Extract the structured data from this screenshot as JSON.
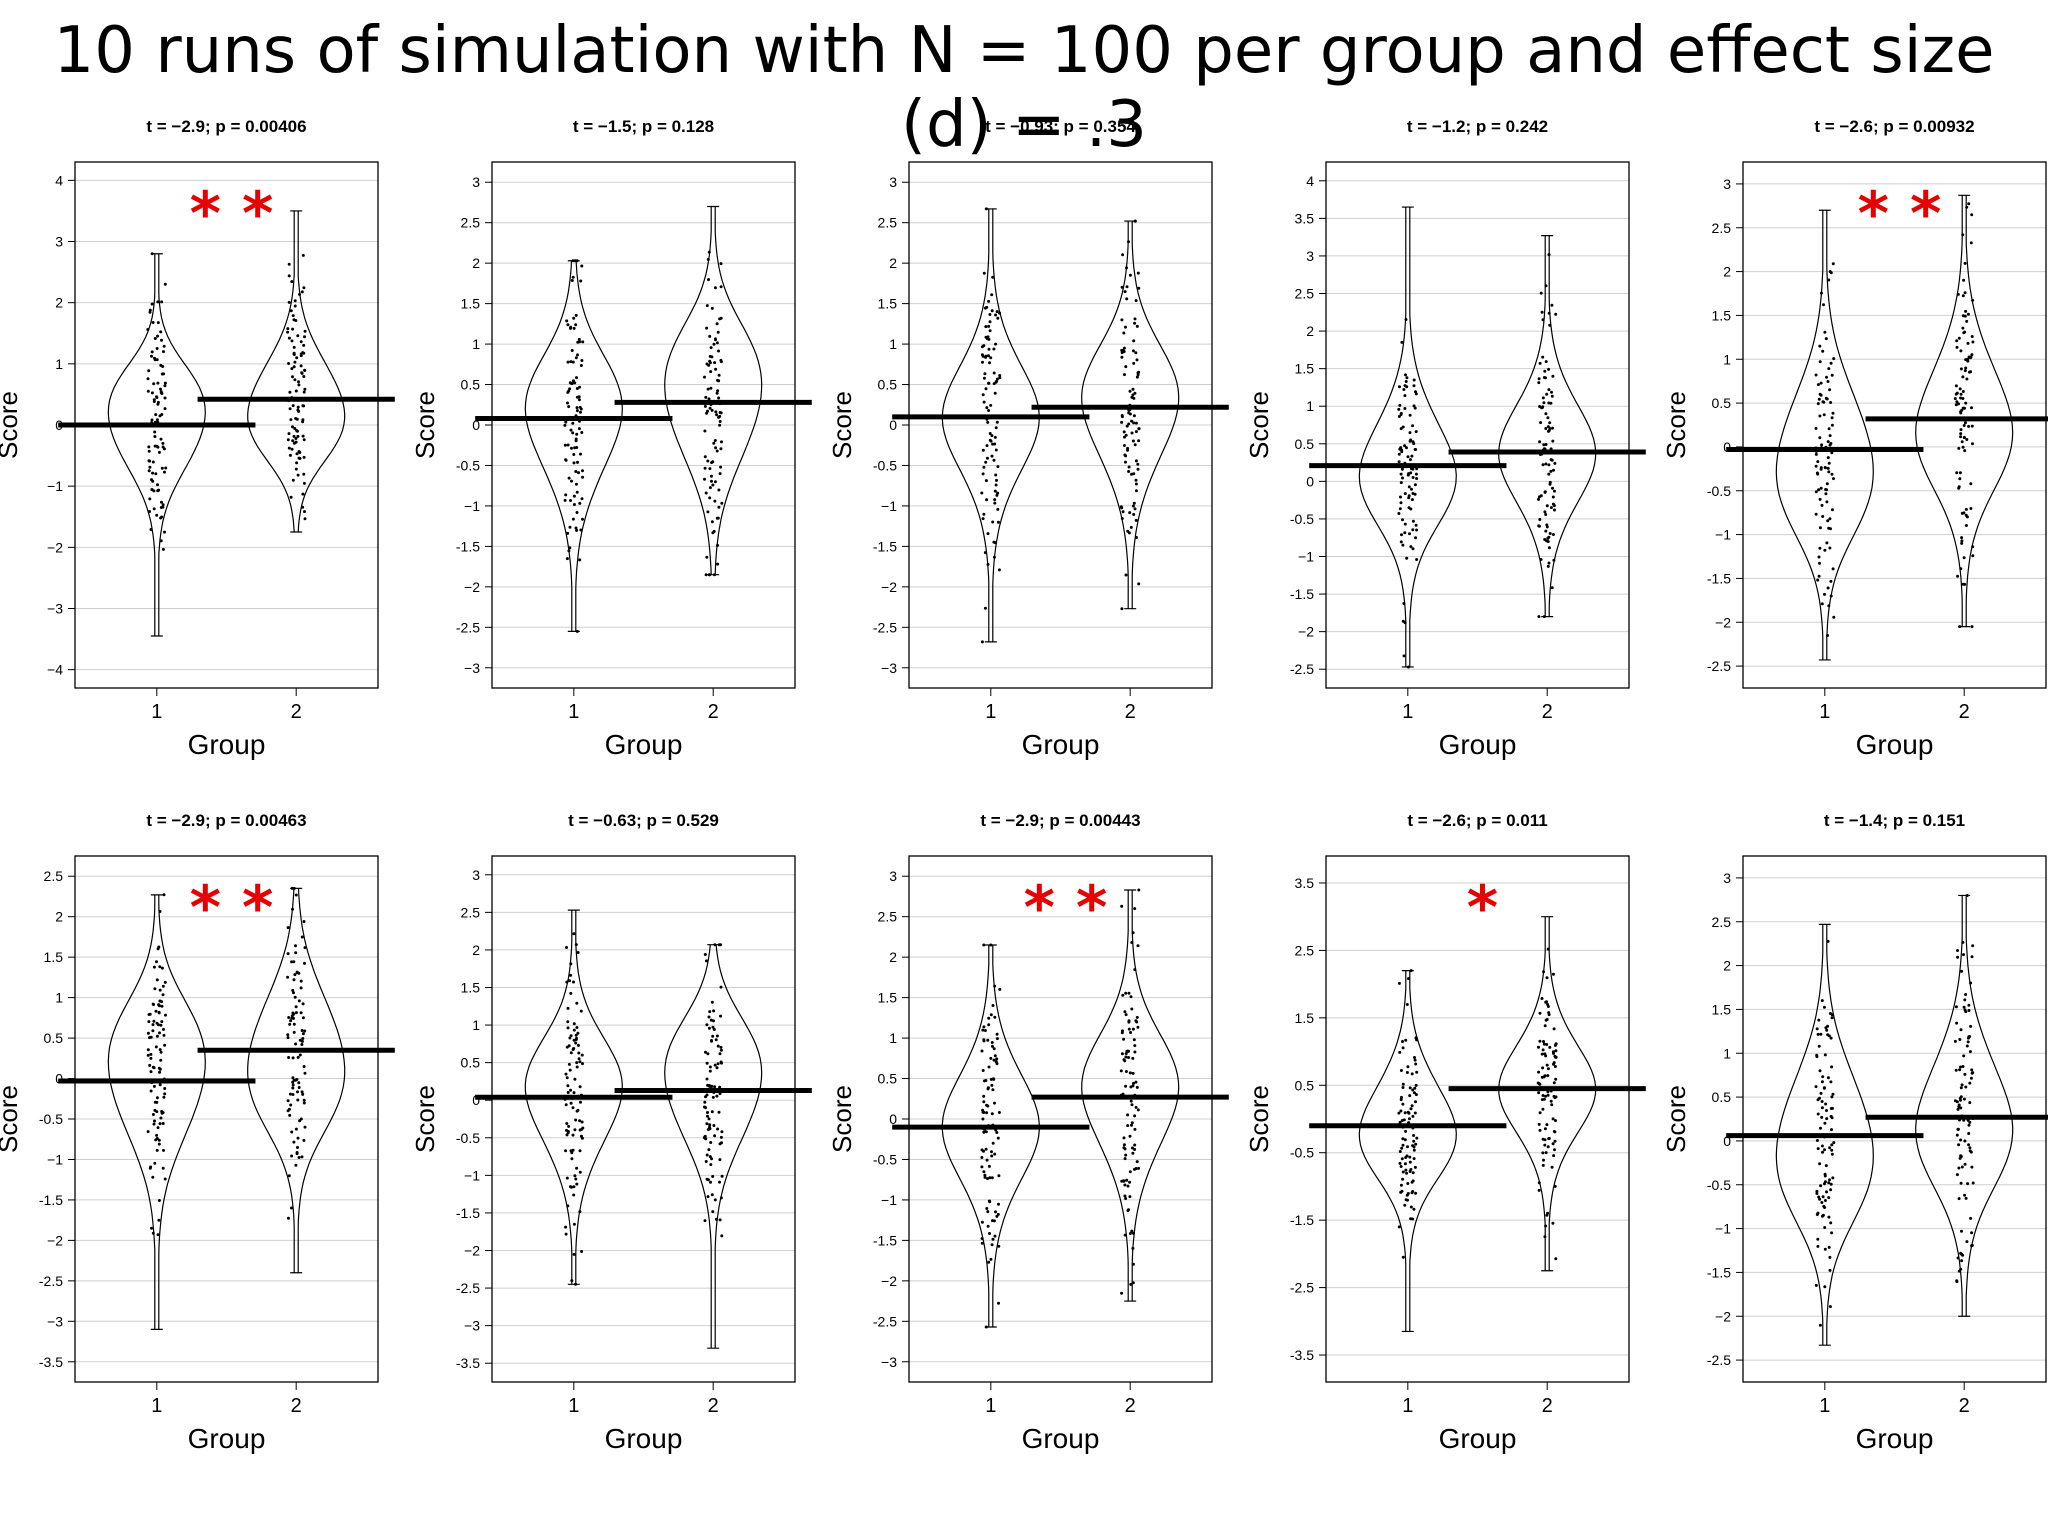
{
  "page": {
    "title": "10 runs of simulation with N = 100 per group and effect size (d) = .3"
  },
  "colors": {
    "significance": "#e60000",
    "grid": "#cfcfcf",
    "outline": "#000000"
  },
  "chart_data": [
    {
      "type": "violin",
      "title": "t = −2.9; p = 0.00406",
      "xlabel": "Group",
      "ylabel": "Score",
      "categories": [
        "1",
        "2"
      ],
      "ylim": [
        -4.3,
        4.3
      ],
      "yticks": [
        -4,
        -3,
        -2,
        -1,
        0,
        1,
        2,
        3,
        4
      ],
      "means": [
        0.0,
        0.42
      ],
      "ranges": [
        [
          -3.45,
          2.8
        ],
        [
          -1.75,
          3.5
        ]
      ],
      "significance": "**",
      "grid": true
    },
    {
      "type": "violin",
      "title": "t = −1.5; p = 0.128",
      "xlabel": "Group",
      "ylabel": "Score",
      "categories": [
        "1",
        "2"
      ],
      "ylim": [
        -3.25,
        3.25
      ],
      "yticks": [
        -3,
        -2.5,
        -2,
        -1.5,
        -1,
        -0.5,
        0,
        0.5,
        1,
        1.5,
        2,
        2.5,
        3
      ],
      "means": [
        0.08,
        0.28
      ],
      "ranges": [
        [
          -2.55,
          2.03
        ],
        [
          -1.85,
          2.7
        ]
      ],
      "significance": "",
      "grid": true
    },
    {
      "type": "violin",
      "title": "t = −0.93; p = 0.354",
      "xlabel": "Group",
      "ylabel": "Score",
      "categories": [
        "1",
        "2"
      ],
      "ylim": [
        -3.25,
        3.25
      ],
      "yticks": [
        -3,
        -2.5,
        -2,
        -1.5,
        -1,
        -0.5,
        0,
        0.5,
        1,
        1.5,
        2,
        2.5,
        3
      ],
      "means": [
        0.1,
        0.22
      ],
      "ranges": [
        [
          -2.68,
          2.67
        ],
        [
          -2.27,
          2.52
        ]
      ],
      "significance": "",
      "grid": true
    },
    {
      "type": "violin",
      "title": "t = −1.2; p = 0.242",
      "xlabel": "Group",
      "ylabel": "Score",
      "categories": [
        "1",
        "2"
      ],
      "ylim": [
        -2.75,
        4.25
      ],
      "yticks": [
        -2.5,
        -2,
        -1.5,
        -1,
        -0.5,
        0,
        0.5,
        1,
        1.5,
        2,
        2.5,
        3,
        3.5,
        4
      ],
      "means": [
        0.21,
        0.39
      ],
      "ranges": [
        [
          -2.47,
          3.65
        ],
        [
          -1.8,
          3.27
        ]
      ],
      "significance": "",
      "grid": true
    },
    {
      "type": "violin",
      "title": "t = −2.6; p = 0.00932",
      "xlabel": "Group",
      "ylabel": "Score",
      "categories": [
        "1",
        "2"
      ],
      "ylim": [
        -2.75,
        3.25
      ],
      "yticks": [
        -2.5,
        -2,
        -1.5,
        -1,
        -0.5,
        0,
        0.5,
        1,
        1.5,
        2,
        2.5,
        3
      ],
      "means": [
        -0.03,
        0.32
      ],
      "ranges": [
        [
          -2.43,
          2.7
        ],
        [
          -2.05,
          2.87
        ]
      ],
      "significance": "**",
      "grid": true
    },
    {
      "type": "violin",
      "title": "t = −2.9; p = 0.00463",
      "xlabel": "Group",
      "ylabel": "Score",
      "categories": [
        "1",
        "2"
      ],
      "ylim": [
        -3.75,
        2.75
      ],
      "yticks": [
        -3.5,
        -3,
        -2.5,
        -2,
        -1.5,
        -1,
        -0.5,
        0,
        0.5,
        1,
        1.5,
        2,
        2.5
      ],
      "means": [
        -0.03,
        0.35
      ],
      "ranges": [
        [
          -3.1,
          2.27
        ],
        [
          -2.4,
          2.35
        ]
      ],
      "significance": "**",
      "grid": true
    },
    {
      "type": "violin",
      "title": "t = −0.63; p = 0.529",
      "xlabel": "Group",
      "ylabel": "Score",
      "categories": [
        "1",
        "2"
      ],
      "ylim": [
        -3.75,
        3.25
      ],
      "yticks": [
        -3.5,
        -3,
        -2.5,
        -2,
        -1.5,
        -1,
        -0.5,
        0,
        0.5,
        1,
        1.5,
        2,
        2.5,
        3
      ],
      "means": [
        0.04,
        0.13
      ],
      "ranges": [
        [
          -2.45,
          2.53
        ],
        [
          -3.3,
          2.07
        ]
      ],
      "significance": "",
      "grid": true
    },
    {
      "type": "violin",
      "title": "t = −2.9; p = 0.00443",
      "xlabel": "Group",
      "ylabel": "Score",
      "categories": [
        "1",
        "2"
      ],
      "ylim": [
        -3.25,
        3.25
      ],
      "yticks": [
        -3,
        -2.5,
        -2,
        -1.5,
        -1,
        -0.5,
        0,
        0.5,
        1,
        1.5,
        2,
        2.5,
        3
      ],
      "means": [
        -0.1,
        0.27
      ],
      "ranges": [
        [
          -2.57,
          2.15
        ],
        [
          -2.25,
          2.83
        ]
      ],
      "significance": "**",
      "grid": true
    },
    {
      "type": "violin",
      "title": "t = −2.6; p = 0.011",
      "xlabel": "Group",
      "ylabel": "Score",
      "categories": [
        "1",
        "2"
      ],
      "ylim": [
        -3.9,
        3.9
      ],
      "yticks": [
        -3.5,
        -2.5,
        -1.5,
        -0.5,
        0.5,
        1.5,
        2.5,
        3.5
      ],
      "yticklabels": [
        "-3.5",
        "-2.5",
        "-1.5",
        "-0.5",
        "0.5",
        "1.5",
        "2.5",
        "3.5"
      ],
      "means": [
        -0.1,
        0.45
      ],
      "ranges": [
        [
          -3.15,
          2.2
        ],
        [
          -2.25,
          3.0
        ]
      ],
      "significance": "*",
      "grid": true
    },
    {
      "type": "violin",
      "title": "t = −1.4; p = 0.151",
      "xlabel": "Group",
      "ylabel": "Score",
      "categories": [
        "1",
        "2"
      ],
      "ylim": [
        -2.75,
        3.25
      ],
      "yticks": [
        -2.5,
        -2,
        -1.5,
        -1,
        -0.5,
        0,
        0.5,
        1,
        1.5,
        2,
        2.5,
        3
      ],
      "means": [
        0.06,
        0.27
      ],
      "ranges": [
        [
          -2.33,
          2.47
        ],
        [
          -2.0,
          2.8
        ]
      ],
      "significance": "",
      "grid": true
    }
  ]
}
